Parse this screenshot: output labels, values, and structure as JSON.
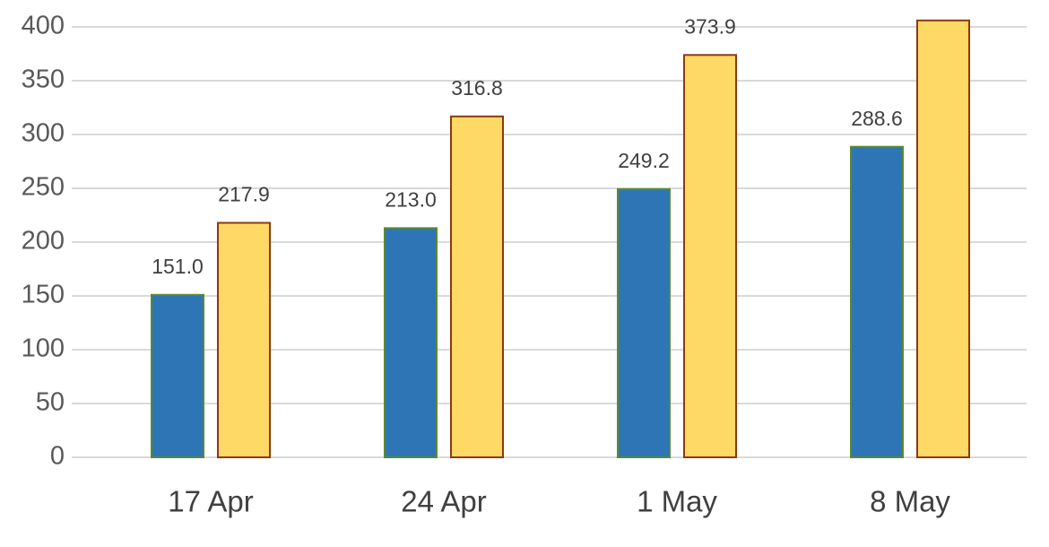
{
  "chart_data": {
    "type": "bar",
    "categories": [
      "17 Apr",
      "24 Apr",
      "1 May",
      "8 May"
    ],
    "series": [
      {
        "color": "#2e75b6",
        "edge": "#5a8a2e",
        "values": [
          151.0,
          213.0,
          249.2,
          288.6
        ],
        "value_labels": [
          "151.0",
          "213.0",
          "249.2",
          "288.6"
        ]
      },
      {
        "color": "#ffd966",
        "edge": "#8b3a0e",
        "values": [
          217.9,
          316.8,
          373.9,
          406
        ],
        "value_labels": [
          "217.9",
          "316.8",
          "373.9",
          null
        ]
      }
    ],
    "ylim": [
      0,
      410
    ],
    "yticks": [
      0,
      50,
      100,
      150,
      200,
      250,
      300,
      350,
      400
    ],
    "grid": true
  }
}
